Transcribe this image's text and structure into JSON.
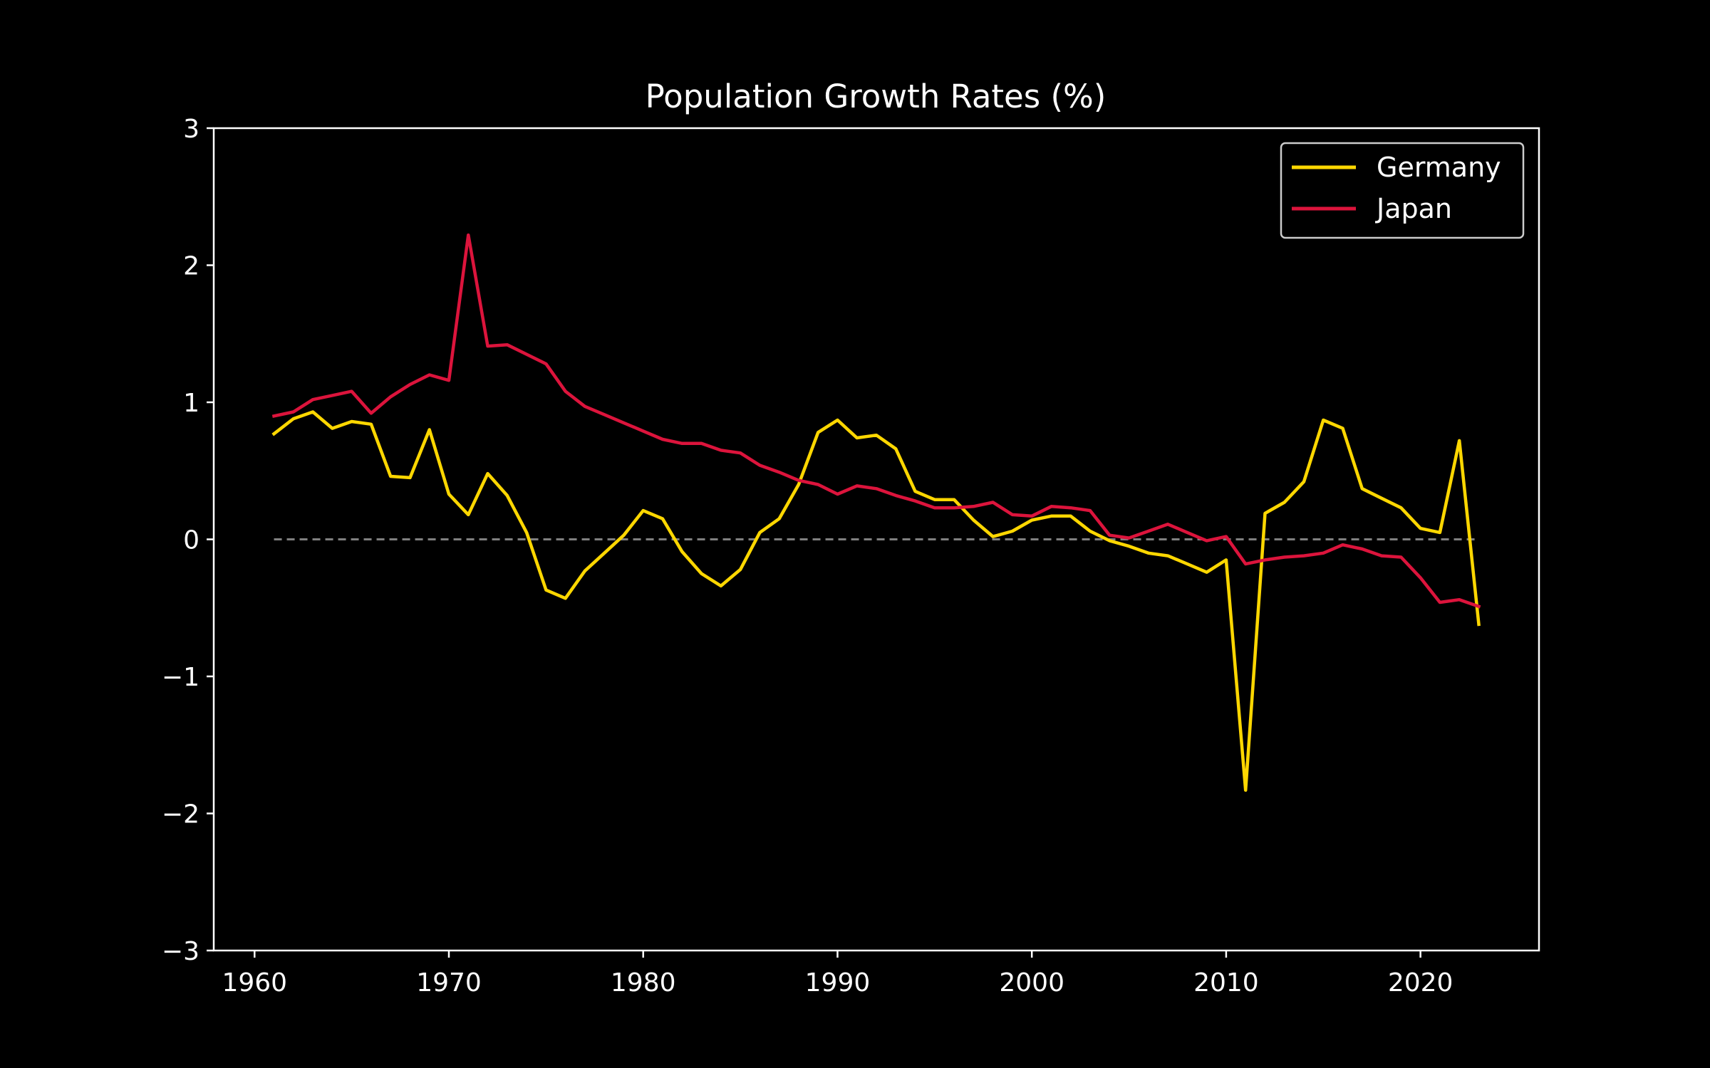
{
  "chart_data": {
    "type": "line",
    "title": "Population Growth Rates (%)",
    "xlabel": "",
    "ylabel": "",
    "xlim": [
      1957.9,
      2026.1
    ],
    "ylim": [
      -3,
      3
    ],
    "xticks": [
      1960,
      1970,
      1980,
      1990,
      2000,
      2010,
      2020
    ],
    "xtick_labels": [
      "1960",
      "1970",
      "1980",
      "1990",
      "2000",
      "2010",
      "2020"
    ],
    "yticks": [
      -3,
      -2,
      -1,
      0,
      1,
      2,
      3
    ],
    "ytick_labels": [
      "−3",
      "−2",
      "−1",
      "0",
      "1",
      "2",
      "3"
    ],
    "grid": false,
    "legend_position": "top-right",
    "background": "#000000",
    "zero_line": {
      "y": 0,
      "color": "#808080",
      "style": "dashed"
    },
    "x": [
      1961,
      1962,
      1963,
      1964,
      1965,
      1966,
      1967,
      1968,
      1969,
      1970,
      1971,
      1972,
      1973,
      1974,
      1975,
      1976,
      1977,
      1978,
      1979,
      1980,
      1981,
      1982,
      1983,
      1984,
      1985,
      1986,
      1987,
      1988,
      1989,
      1990,
      1991,
      1992,
      1993,
      1994,
      1995,
      1996,
      1997,
      1998,
      1999,
      2000,
      2001,
      2002,
      2003,
      2004,
      2005,
      2006,
      2007,
      2008,
      2009,
      2010,
      2011,
      2012,
      2013,
      2014,
      2015,
      2016,
      2017,
      2018,
      2019,
      2020,
      2021,
      2022,
      2023
    ],
    "series": [
      {
        "name": "Germany",
        "color": "#FFD700",
        "values": [
          0.77,
          0.88,
          0.93,
          0.81,
          0.86,
          0.84,
          0.46,
          0.45,
          0.8,
          0.33,
          0.18,
          0.48,
          0.32,
          0.05,
          -0.37,
          -0.43,
          -0.23,
          -0.1,
          0.03,
          0.21,
          0.15,
          -0.09,
          -0.25,
          -0.34,
          -0.22,
          0.05,
          0.15,
          0.4,
          0.78,
          0.87,
          0.74,
          0.76,
          0.66,
          0.35,
          0.29,
          0.29,
          0.14,
          0.02,
          0.06,
          0.14,
          0.17,
          0.17,
          0.06,
          -0.01,
          -0.05,
          -0.1,
          -0.12,
          -0.18,
          -0.24,
          -0.15,
          -1.83,
          0.19,
          0.27,
          0.42,
          0.87,
          0.81,
          0.37,
          0.3,
          0.23,
          0.08,
          0.05,
          0.72,
          -0.62
        ]
      },
      {
        "name": "Japan",
        "color": "#DC143C",
        "values": [
          0.9,
          0.93,
          1.02,
          1.05,
          1.08,
          0.92,
          1.04,
          1.13,
          1.2,
          1.16,
          2.22,
          1.41,
          1.42,
          1.35,
          1.28,
          1.08,
          0.97,
          0.91,
          0.85,
          0.79,
          0.73,
          0.7,
          0.7,
          0.65,
          0.63,
          0.54,
          0.49,
          0.43,
          0.4,
          0.33,
          0.39,
          0.37,
          0.32,
          0.28,
          0.23,
          0.23,
          0.24,
          0.27,
          0.18,
          0.17,
          0.24,
          0.23,
          0.21,
          0.03,
          0.01,
          0.06,
          0.11,
          0.05,
          -0.01,
          0.02,
          -0.18,
          -0.15,
          -0.13,
          -0.12,
          -0.1,
          -0.04,
          -0.07,
          -0.12,
          -0.13,
          -0.28,
          -0.46,
          -0.44,
          -0.49
        ]
      }
    ]
  }
}
